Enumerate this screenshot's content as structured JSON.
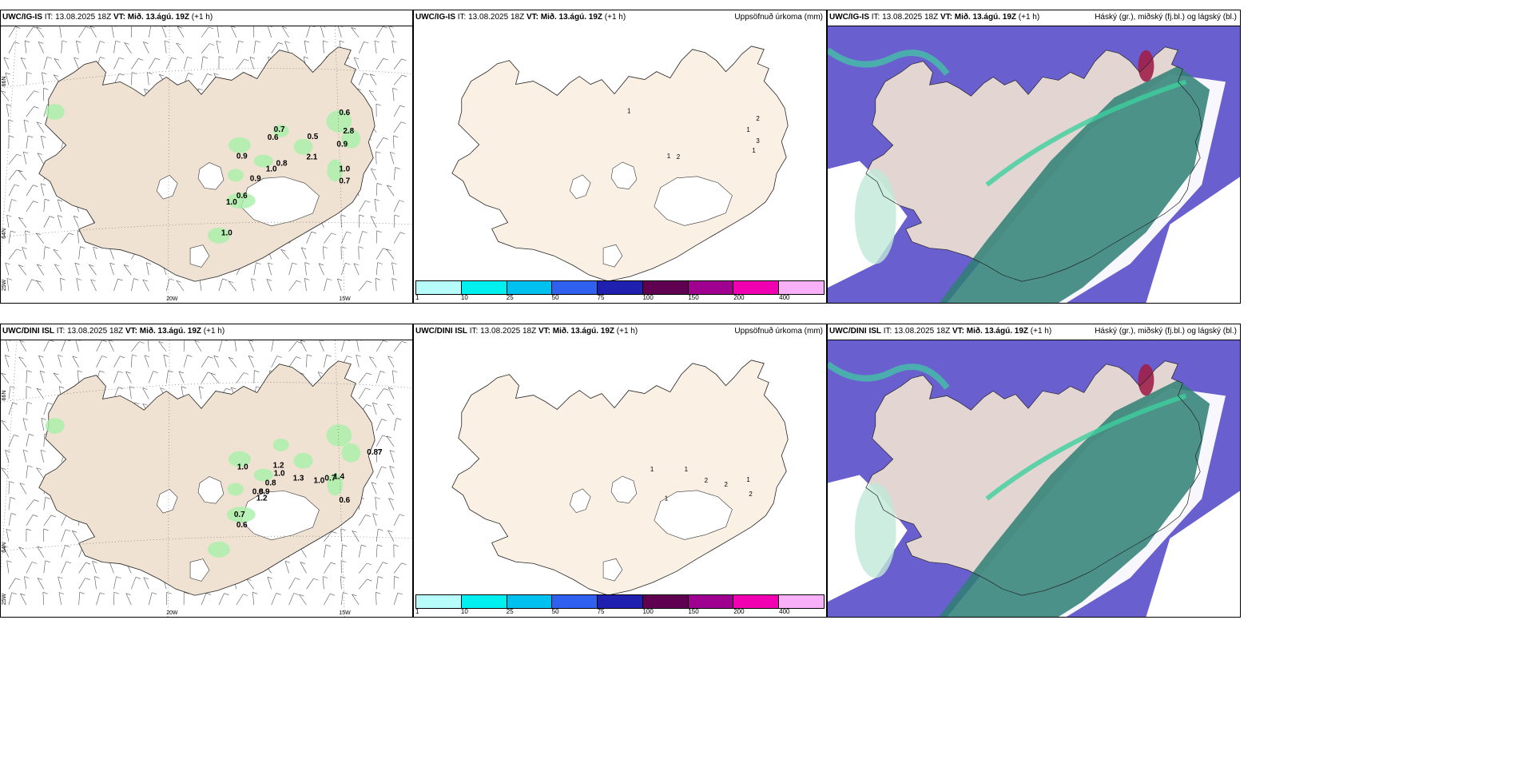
{
  "rows": [
    {
      "model": "UWC/IG-IS",
      "it": "IT: 13.08.2025 18Z",
      "vt_label": "VT:",
      "vt": "Mið. 13.ágú. 19Z",
      "lead": "(+1 h)",
      "wind_values": [
        "0.6",
        "2.8",
        "0.5",
        "0.7",
        "0.6",
        "0.9",
        "2.1",
        "0.9",
        "0.8",
        "1.0",
        "0.9",
        "1.0",
        "0.7",
        "0.6",
        "1.0",
        "1.0"
      ],
      "accum_values": [
        "1",
        "2",
        "1",
        "3",
        "1",
        "1",
        "2"
      ]
    },
    {
      "model": "UWC/DINI ISL",
      "it": "IT: 13.08.2025 18Z",
      "vt_label": "VT:",
      "vt": "Mið. 13.ágú. 19Z",
      "lead": "(+1 h)",
      "wind_values": [
        "0.87",
        "1.0",
        "1.2",
        "1.0",
        "1.3",
        "0.7",
        "1.4",
        "0.8",
        "0.8",
        "0.9",
        "1.2",
        "1.0",
        "0.7",
        "0.6",
        "0.6"
      ],
      "accum_values": [
        "1",
        "1",
        "2",
        "2",
        "1",
        "2",
        "1"
      ]
    }
  ],
  "precip_unit": "Uppsöfnuð úrkoma (mm)",
  "cloud_unit": "Háský (gr.), miðský (fj.bl.) og lágský (bl.)",
  "coords": {
    "lat66": "66N",
    "lat64": "64N",
    "lon25": "25W",
    "lon20": "20W",
    "lon15": "15W"
  },
  "legend": {
    "labels": [
      "1",
      "10",
      "25",
      "50",
      "75",
      "100",
      "150",
      "200",
      "400"
    ],
    "colors": [
      "#b8fbfb",
      "#00f0f0",
      "#00c0ef",
      "#3060f0",
      "#2020b0",
      "#600050",
      "#a00090",
      "#f000b0",
      "#f8b0f8"
    ]
  },
  "colors": {
    "land": "#efe2d2",
    "land_plain": "#fbf0e4",
    "wind_green": "#a8f0a8",
    "cloud_violet": "#6a5fcf",
    "cloud_teal": "#2e7f74",
    "cloud_green": "#3fcf9f",
    "cloud_light": "#bfe9d7"
  }
}
